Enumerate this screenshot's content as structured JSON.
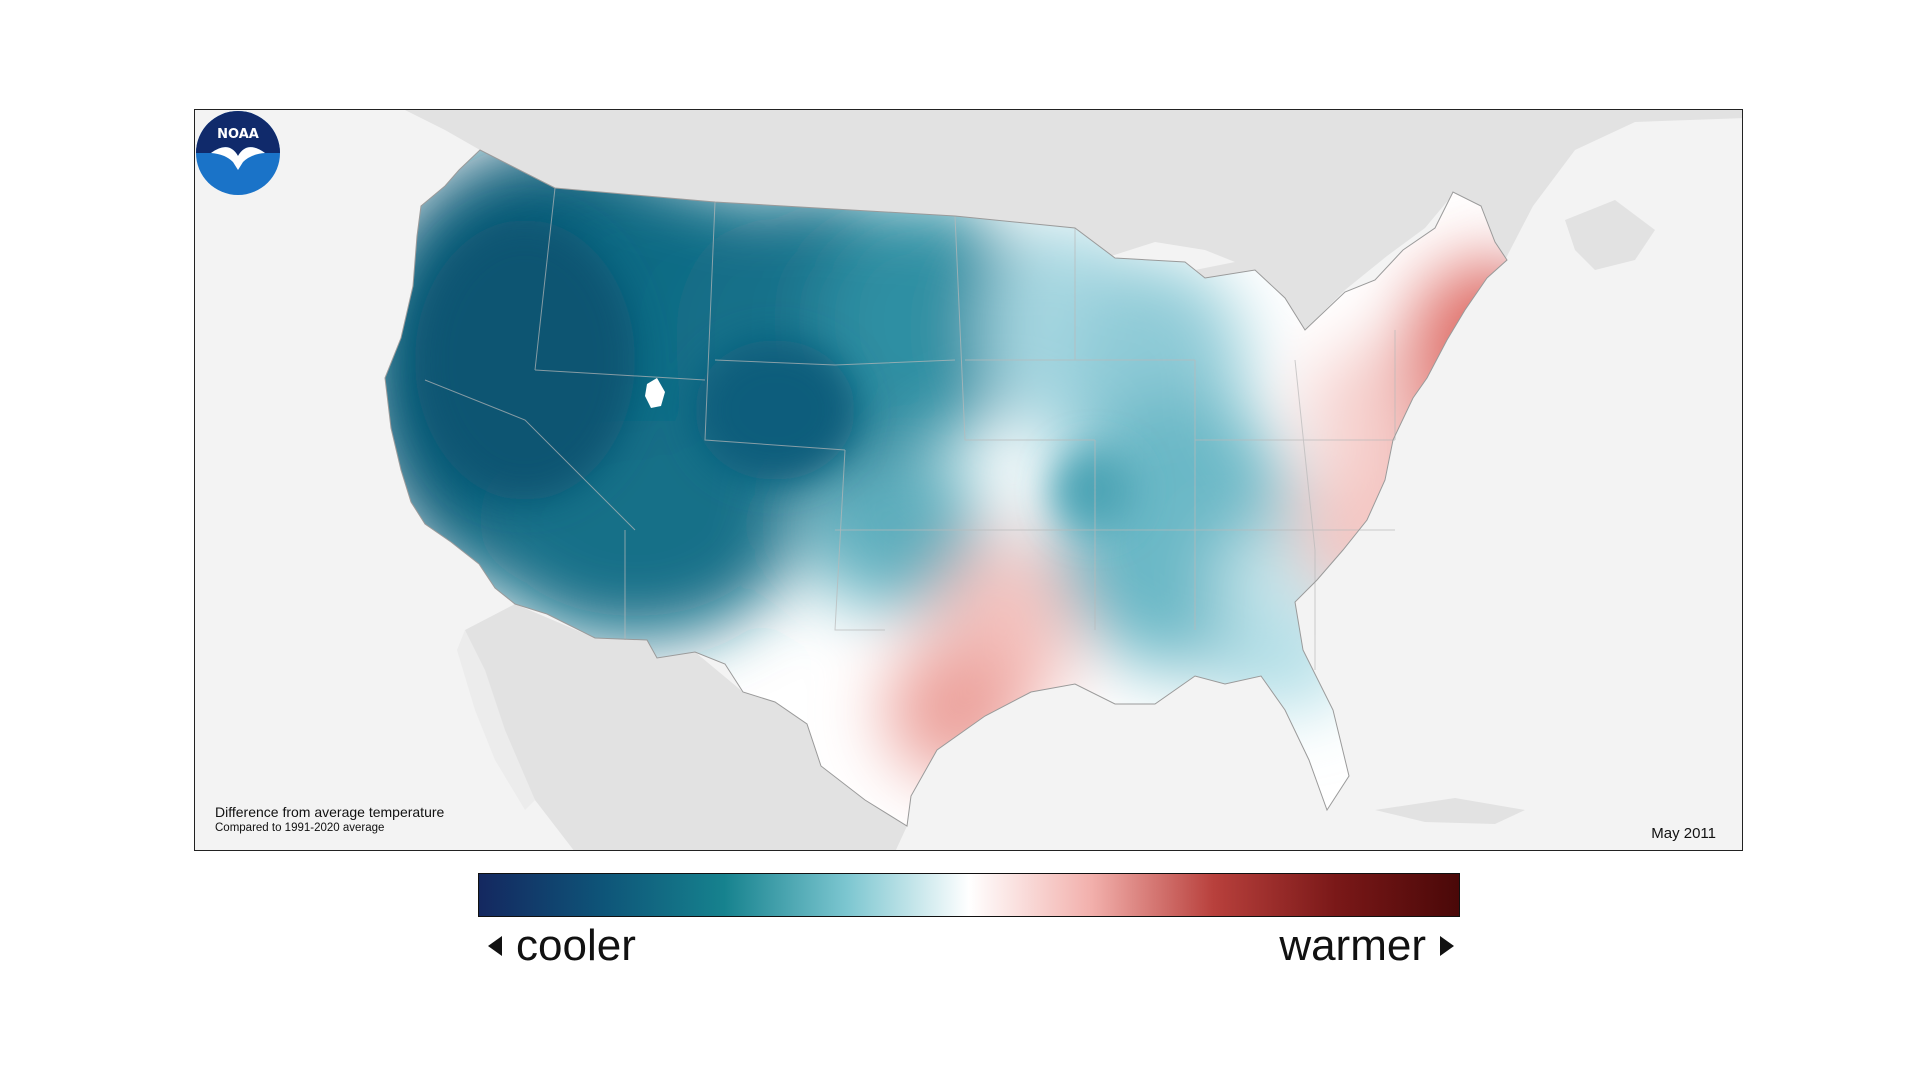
{
  "map": {
    "caption_title": "Difference from average temperature",
    "caption_subtitle": "Compared to 1991-2020 average",
    "date": "May 2011",
    "logo_text": "NOAA"
  },
  "legend": {
    "cooler_label": "cooler",
    "warmer_label": "warmer",
    "colors": [
      "#142860",
      "#0e5478",
      "#16828e",
      "#7cc6d0",
      "#ffffff",
      "#f2b0ac",
      "#b8403c",
      "#7a1818",
      "#4a0808"
    ]
  },
  "colors": {
    "strong_cool": "#0e5f7a",
    "cool": "#2f8fa3",
    "light_cool": "#bfe3ea",
    "neutral": "#ffffff",
    "light_warm": "#f5c8c5",
    "warm": "#e1716c",
    "land_outside": "#e2e2e2",
    "ocean": "#f3f3f3"
  }
}
